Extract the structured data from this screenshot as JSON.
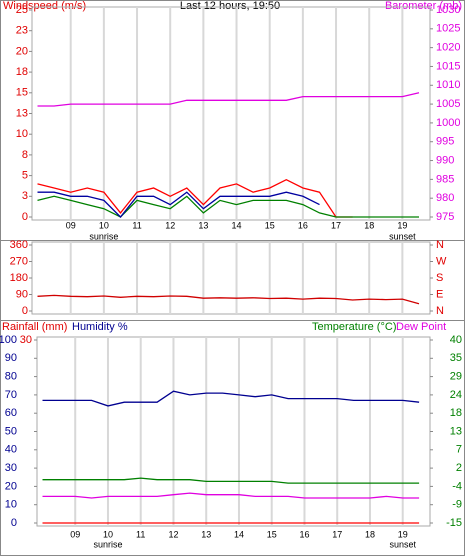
{
  "chart_data": [
    {
      "type": "line",
      "title": "Last 12 hours, 19:50",
      "ylabel": "Windspeed (m/s)",
      "y2label": "Barometer (mb)",
      "x": [
        8,
        8.5,
        9,
        9.5,
        10,
        10.5,
        11,
        11.5,
        12,
        12.5,
        13,
        13.5,
        14,
        14.5,
        15,
        15.5,
        16,
        16.5,
        17,
        17.5,
        18,
        18.5,
        19,
        19.5
      ],
      "xlim": [
        7.833,
        19.833
      ],
      "xticks": [
        {
          "value": 9,
          "label": "09"
        },
        10,
        11,
        12,
        13,
        14,
        15,
        16,
        17,
        18,
        19
      ],
      "annotations": [
        {
          "text": "sunrise",
          "x": 10
        },
        {
          "text": "sunset",
          "x": 19
        }
      ],
      "ylim": [
        0,
        25
      ],
      "yticks": [
        0,
        {
          "value": 2.5,
          "label": "3"
        },
        5,
        {
          "value": 7.5,
          "label": "8"
        },
        10,
        {
          "value": 12.5,
          "label": "13"
        },
        15,
        {
          "value": 17.5,
          "label": "18"
        },
        20,
        {
          "value": 22.5,
          "label": "23"
        },
        25
      ],
      "y2lim": [
        975,
        1030
      ],
      "y2ticks": [
        975,
        980,
        985,
        990,
        995,
        1000,
        1005,
        1010,
        1015,
        1020,
        1025,
        1030
      ],
      "series": [
        {
          "color": "#ff0000",
          "values": [
            4,
            3.5,
            3,
            3.5,
            3,
            0.5,
            3,
            3.5,
            2.5,
            3.5,
            1.5,
            3.5,
            4,
            3,
            3.5,
            4.5,
            3.5,
            3,
            0,
            0,
            null,
            null,
            null,
            null
          ]
        },
        {
          "color": "#008000",
          "values": [
            2,
            2.5,
            2,
            1.5,
            1,
            0,
            2,
            1.5,
            1,
            2.5,
            0.5,
            2,
            1.5,
            2,
            2,
            2,
            1.5,
            0.5,
            0,
            0,
            0,
            0,
            0,
            0
          ]
        },
        {
          "color": "#0000a0",
          "values": [
            3,
            3,
            2.5,
            2.5,
            2,
            0,
            2.5,
            2.5,
            1.5,
            3,
            1,
            2.5,
            2.5,
            2.5,
            2.5,
            3,
            2.5,
            1.5,
            null,
            null,
            null,
            null,
            null,
            null
          ]
        },
        {
          "color": "#e000e0",
          "axis": "y2",
          "values": [
            1004.5,
            1004.5,
            1005,
            1005,
            1005,
            1005,
            1005,
            1005,
            1005,
            1006,
            1006,
            1006,
            1006,
            1006,
            1006,
            1006,
            1007,
            1007,
            1007,
            1007,
            1007,
            1007,
            1007,
            1008
          ]
        }
      ]
    },
    {
      "type": "line",
      "x": [
        8,
        8.5,
        9,
        9.5,
        10,
        10.5,
        11,
        11.5,
        12,
        12.5,
        13,
        13.5,
        14,
        14.5,
        15,
        15.5,
        16,
        16.5,
        17,
        17.5,
        18,
        18.5,
        19,
        19.5
      ],
      "xlim": [
        7.833,
        19.833
      ],
      "xticks": [
        9,
        10,
        11,
        12,
        13,
        14,
        15,
        16,
        17,
        18,
        19
      ],
      "ylim": [
        0,
        360
      ],
      "yticks": [
        0,
        90,
        180,
        270,
        360
      ],
      "y2lim": [
        0,
        360
      ],
      "y2ticks": [
        {
          "value": 0,
          "label": "N"
        },
        {
          "value": 90,
          "label": "E"
        },
        {
          "value": 180,
          "label": "S"
        },
        {
          "value": 270,
          "label": "W"
        },
        {
          "value": 360,
          "label": "N"
        }
      ],
      "series": [
        {
          "color": "#d00000",
          "values": [
            80,
            85,
            80,
            78,
            82,
            75,
            80,
            78,
            82,
            80,
            70,
            72,
            70,
            72,
            68,
            70,
            65,
            70,
            68,
            60,
            65,
            62,
            65,
            40
          ]
        }
      ]
    },
    {
      "type": "line",
      "ylabel": "Humidity %",
      "y3label": "Rainfall (mm)",
      "y2labels": [
        "Temperature (°C)",
        "Dew Point"
      ],
      "x": [
        8,
        8.5,
        9,
        9.5,
        10,
        10.5,
        11,
        11.5,
        12,
        12.5,
        13,
        13.5,
        14,
        14.5,
        15,
        15.5,
        16,
        16.5,
        17,
        17.5,
        18,
        18.5,
        19,
        19.5
      ],
      "xlim": [
        7.833,
        19.833
      ],
      "xticks": [
        {
          "value": 9,
          "label": "09"
        },
        10,
        11,
        12,
        13,
        14,
        15,
        16,
        17,
        18,
        19
      ],
      "annotations": [
        {
          "text": "sunrise",
          "x": 10
        },
        {
          "text": "sunset",
          "x": 19
        }
      ],
      "ylim": [
        0,
        100
      ],
      "yticks": [
        0,
        10,
        20,
        30,
        40,
        50,
        60,
        70,
        80,
        90,
        100
      ],
      "y3lim": [
        0,
        30
      ],
      "y3ticks": [
        30
      ],
      "y2lim": [
        -15,
        40
      ],
      "y2ticks": [
        -15,
        {
          "value": -9.5,
          "label": "-9"
        },
        -4,
        {
          "value": 1.5,
          "label": "2"
        },
        7,
        {
          "value": 12.5,
          "label": "13"
        },
        18,
        {
          "value": 23.5,
          "label": "24"
        },
        29,
        {
          "value": 34.5,
          "label": "35"
        },
        40
      ],
      "series": [
        {
          "color": "#000090",
          "values": [
            67,
            67,
            67,
            67,
            64,
            66,
            66,
            66,
            72,
            70,
            71,
            71,
            70,
            69,
            70,
            68,
            68,
            68,
            68,
            67,
            67,
            67,
            67,
            66
          ]
        },
        {
          "color": "#008000",
          "axis": "y2",
          "values": [
            -2,
            -2,
            -2,
            -2,
            -2,
            -2,
            -1.5,
            -2,
            -2,
            -2,
            -2.5,
            -2.5,
            -2.5,
            -2.5,
            -2.5,
            -3,
            -3,
            -3,
            -3,
            -3,
            -3,
            -3,
            -3,
            -3
          ]
        },
        {
          "color": "#e000e0",
          "axis": "y2",
          "values": [
            -7,
            -7,
            -7,
            -7.5,
            -7,
            -7,
            -7,
            -7,
            -6.5,
            -6,
            -6.5,
            -6.5,
            -6.5,
            -7,
            -7,
            -7,
            -7.5,
            -7.5,
            -7.5,
            -7.5,
            -7.5,
            -7,
            -7.5,
            -7.5
          ]
        },
        {
          "color": "#ff0000",
          "axis": "y3",
          "values": [
            0,
            0,
            0,
            0,
            0,
            0,
            0,
            0,
            0,
            0,
            0,
            0,
            0,
            0,
            0,
            0,
            0,
            0,
            0,
            0,
            0,
            0,
            0,
            0
          ]
        }
      ]
    }
  ]
}
